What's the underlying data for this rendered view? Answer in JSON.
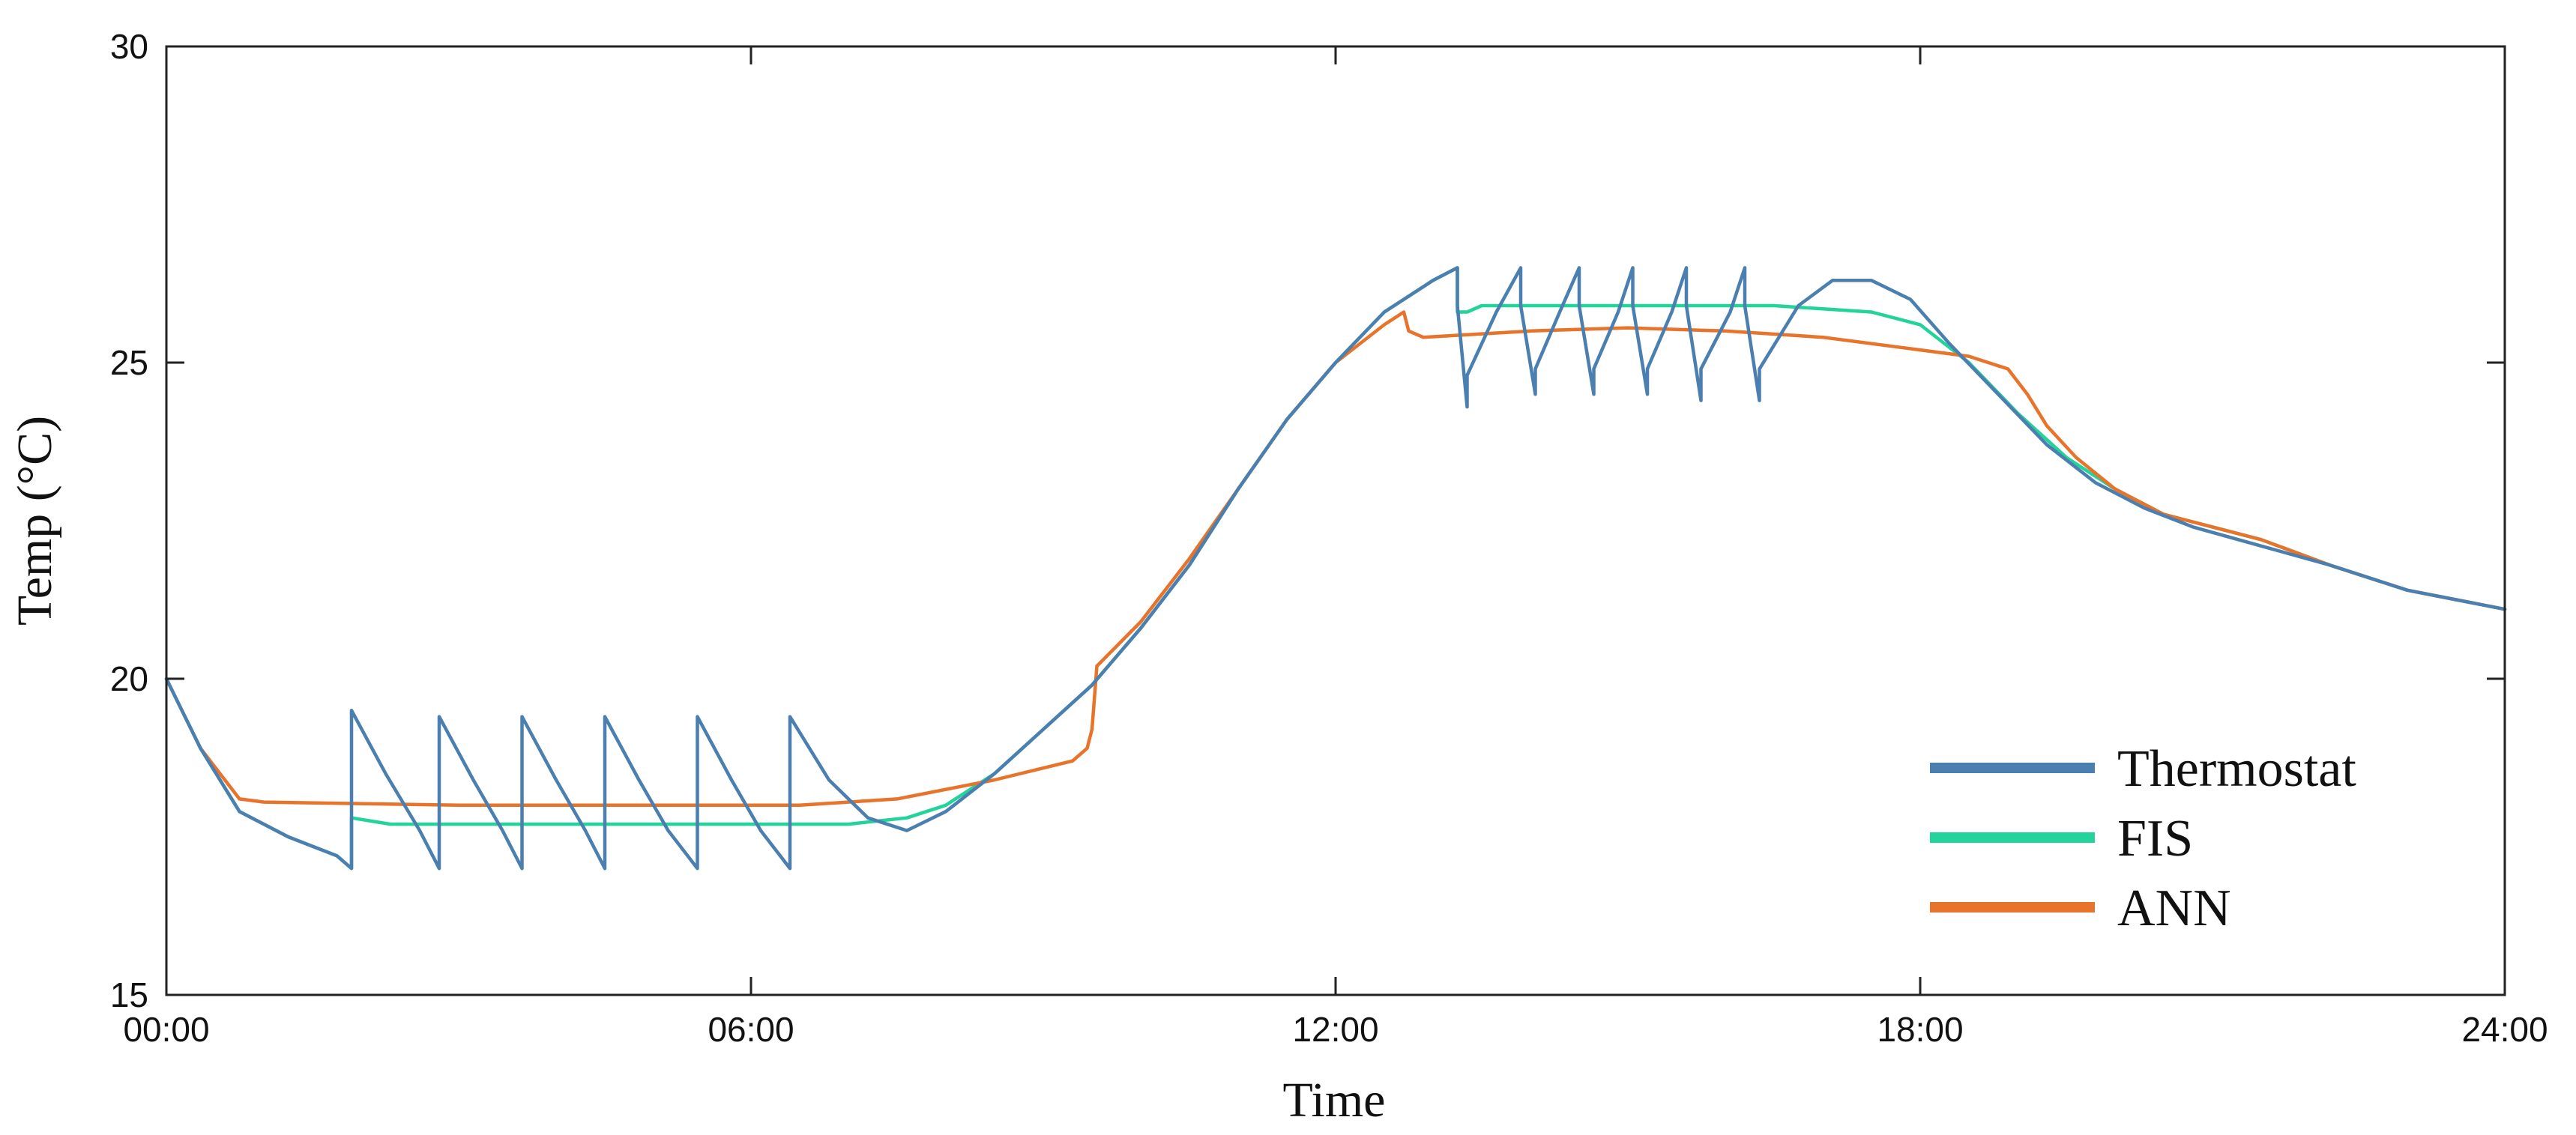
{
  "chart_data": {
    "type": "line",
    "title": "",
    "xlabel": "Time",
    "ylabel": "Temp (°C)",
    "xlim": [
      0,
      24
    ],
    "ylim": [
      15,
      30
    ],
    "x_ticks": [
      {
        "value": 0,
        "label": "00:00"
      },
      {
        "value": 6,
        "label": "06:00"
      },
      {
        "value": 12,
        "label": "12:00"
      },
      {
        "value": 18,
        "label": "18:00"
      },
      {
        "value": 24,
        "label": "24:00"
      }
    ],
    "y_ticks": [
      {
        "value": 15,
        "label": "15"
      },
      {
        "value": 20,
        "label": "20"
      },
      {
        "value": 25,
        "label": "25"
      },
      {
        "value": 30,
        "label": "30"
      }
    ],
    "grid": false,
    "legend_position": "bottom-right",
    "series": [
      {
        "name": "Thermostat",
        "color": "#4a7fb0",
        "points": [
          [
            0,
            20.0
          ],
          [
            0.35,
            18.9
          ],
          [
            0.75,
            17.9
          ],
          [
            1.25,
            17.5
          ],
          [
            1.75,
            17.2
          ],
          [
            1.9,
            17.0
          ],
          [
            1.9,
            19.5
          ],
          [
            2.25,
            18.5
          ],
          [
            2.6,
            17.6
          ],
          [
            2.8,
            17.0
          ],
          [
            2.8,
            19.4
          ],
          [
            3.15,
            18.4
          ],
          [
            3.45,
            17.6
          ],
          [
            3.65,
            17.0
          ],
          [
            3.65,
            19.4
          ],
          [
            4.0,
            18.4
          ],
          [
            4.3,
            17.6
          ],
          [
            4.5,
            17.0
          ],
          [
            4.5,
            19.4
          ],
          [
            4.85,
            18.4
          ],
          [
            5.15,
            17.6
          ],
          [
            5.45,
            17.0
          ],
          [
            5.45,
            19.4
          ],
          [
            5.8,
            18.4
          ],
          [
            6.1,
            17.6
          ],
          [
            6.4,
            17.0
          ],
          [
            6.4,
            19.4
          ],
          [
            6.8,
            18.4
          ],
          [
            7.2,
            17.8
          ],
          [
            7.6,
            17.6
          ],
          [
            8.0,
            17.9
          ],
          [
            8.5,
            18.5
          ],
          [
            9.0,
            19.2
          ],
          [
            9.5,
            19.9
          ],
          [
            10.0,
            20.8
          ],
          [
            10.5,
            21.8
          ],
          [
            11.0,
            23.0
          ],
          [
            11.5,
            24.1
          ],
          [
            12.0,
            25.0
          ],
          [
            12.5,
            25.8
          ],
          [
            13.0,
            26.3
          ],
          [
            13.25,
            26.5
          ],
          [
            13.25,
            25.9
          ],
          [
            13.35,
            24.3
          ],
          [
            13.35,
            24.8
          ],
          [
            13.65,
            25.8
          ],
          [
            13.9,
            26.5
          ],
          [
            13.9,
            25.9
          ],
          [
            14.05,
            24.5
          ],
          [
            14.05,
            24.9
          ],
          [
            14.3,
            25.8
          ],
          [
            14.5,
            26.5
          ],
          [
            14.5,
            25.9
          ],
          [
            14.65,
            24.5
          ],
          [
            14.65,
            24.9
          ],
          [
            14.9,
            25.8
          ],
          [
            15.05,
            26.5
          ],
          [
            15.05,
            25.9
          ],
          [
            15.2,
            24.5
          ],
          [
            15.2,
            24.9
          ],
          [
            15.45,
            25.8
          ],
          [
            15.6,
            26.5
          ],
          [
            15.6,
            25.9
          ],
          [
            15.75,
            24.4
          ],
          [
            15.75,
            24.9
          ],
          [
            16.05,
            25.8
          ],
          [
            16.2,
            26.5
          ],
          [
            16.2,
            25.9
          ],
          [
            16.35,
            24.4
          ],
          [
            16.35,
            24.9
          ],
          [
            16.75,
            25.9
          ],
          [
            17.1,
            26.3
          ],
          [
            17.5,
            26.3
          ],
          [
            17.9,
            26.0
          ],
          [
            18.3,
            25.3
          ],
          [
            18.8,
            24.5
          ],
          [
            19.3,
            23.7
          ],
          [
            19.8,
            23.1
          ],
          [
            20.3,
            22.7
          ],
          [
            20.8,
            22.4
          ],
          [
            21.5,
            22.1
          ],
          [
            22.2,
            21.8
          ],
          [
            23.0,
            21.4
          ],
          [
            24.0,
            21.1
          ]
        ]
      },
      {
        "name": "FIS",
        "color": "#22d39a",
        "points": [
          [
            0,
            20.0
          ],
          [
            0.35,
            18.9
          ],
          [
            0.75,
            17.9
          ],
          [
            1.25,
            17.5
          ],
          [
            1.75,
            17.2
          ],
          [
            1.9,
            17.0
          ],
          [
            1.9,
            17.8
          ],
          [
            2.3,
            17.7
          ],
          [
            4.0,
            17.7
          ],
          [
            6.0,
            17.7
          ],
          [
            7.0,
            17.7
          ],
          [
            7.6,
            17.8
          ],
          [
            8.0,
            18.0
          ],
          [
            8.5,
            18.5
          ],
          [
            9.0,
            19.2
          ],
          [
            9.5,
            19.9
          ],
          [
            10.0,
            20.8
          ],
          [
            10.5,
            21.8
          ],
          [
            11.0,
            23.0
          ],
          [
            11.5,
            24.1
          ],
          [
            12.0,
            25.0
          ],
          [
            12.5,
            25.8
          ],
          [
            13.0,
            26.3
          ],
          [
            13.25,
            26.5
          ],
          [
            13.25,
            25.8
          ],
          [
            13.35,
            25.8
          ],
          [
            13.5,
            25.9
          ],
          [
            15.0,
            25.9
          ],
          [
            16.5,
            25.9
          ],
          [
            17.0,
            25.85
          ],
          [
            17.5,
            25.8
          ],
          [
            18.0,
            25.6
          ],
          [
            18.5,
            25.0
          ],
          [
            19.0,
            24.2
          ],
          [
            19.5,
            23.5
          ],
          [
            20.0,
            23.0
          ],
          [
            20.5,
            22.6
          ],
          [
            21.0,
            22.4
          ],
          [
            21.5,
            22.2
          ],
          [
            22.2,
            21.8
          ],
          [
            23.0,
            21.4
          ],
          [
            24.0,
            21.1
          ]
        ]
      },
      {
        "name": "ANN",
        "color": "#e8732a",
        "points": [
          [
            0,
            20.0
          ],
          [
            0.35,
            18.9
          ],
          [
            0.75,
            18.1
          ],
          [
            1.0,
            18.05
          ],
          [
            3.0,
            18.0
          ],
          [
            5.0,
            18.0
          ],
          [
            6.5,
            18.0
          ],
          [
            7.5,
            18.1
          ],
          [
            8.5,
            18.4
          ],
          [
            9.3,
            18.7
          ],
          [
            9.45,
            18.9
          ],
          [
            9.5,
            19.2
          ],
          [
            9.55,
            20.2
          ],
          [
            10.0,
            20.9
          ],
          [
            10.5,
            21.9
          ],
          [
            11.0,
            23.0
          ],
          [
            11.5,
            24.1
          ],
          [
            12.0,
            25.0
          ],
          [
            12.5,
            25.6
          ],
          [
            12.7,
            25.8
          ],
          [
            12.75,
            25.5
          ],
          [
            12.9,
            25.4
          ],
          [
            14.0,
            25.5
          ],
          [
            15.0,
            25.55
          ],
          [
            16.0,
            25.5
          ],
          [
            17.0,
            25.4
          ],
          [
            18.0,
            25.2
          ],
          [
            18.5,
            25.1
          ],
          [
            18.9,
            24.9
          ],
          [
            19.1,
            24.5
          ],
          [
            19.3,
            24.0
          ],
          [
            19.6,
            23.5
          ],
          [
            20.0,
            23.0
          ],
          [
            20.5,
            22.6
          ],
          [
            21.0,
            22.4
          ],
          [
            21.5,
            22.2
          ],
          [
            22.2,
            21.8
          ],
          [
            23.0,
            21.4
          ],
          [
            24.0,
            21.1
          ]
        ]
      }
    ]
  }
}
